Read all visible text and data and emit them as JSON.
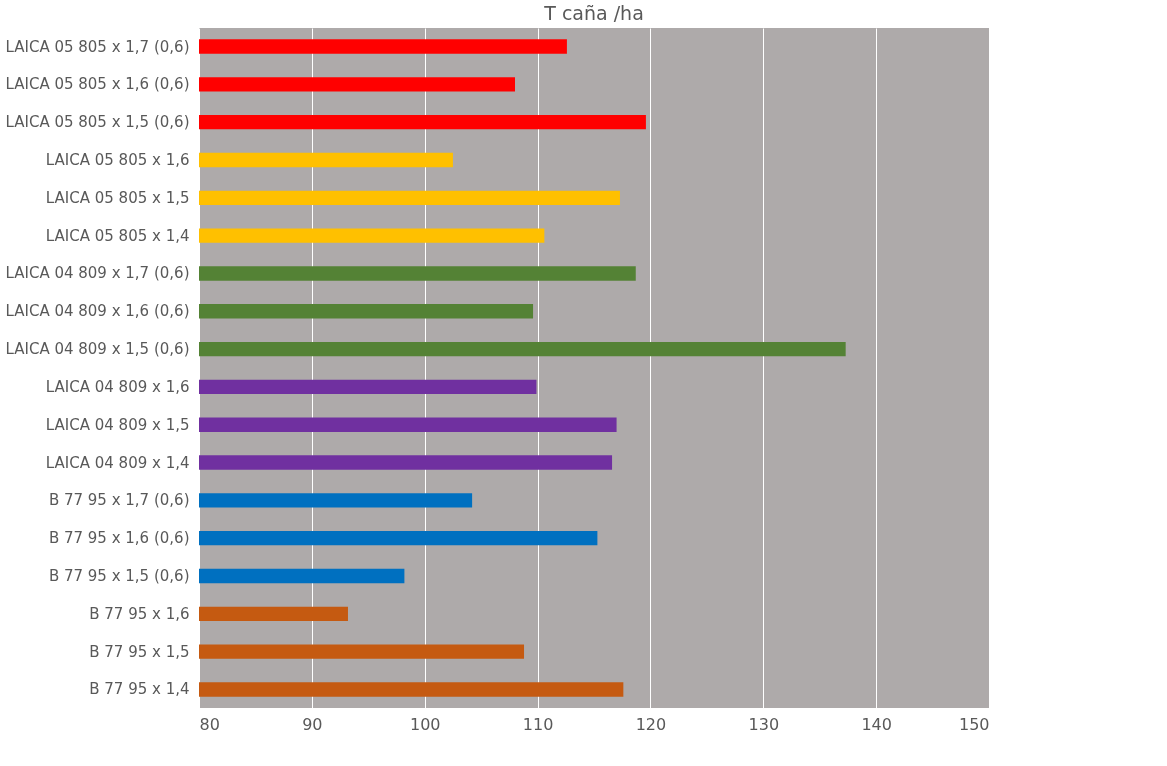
{
  "chart_data": {
    "type": "bar",
    "orientation": "horizontal",
    "title": "T caña /ha",
    "categories": [
      "LAICA 05 805 x 1,7 (0,6)",
      "LAICA 05 805 x 1,6 (0,6)",
      "LAICA 05 805 x 1,5 (0,6)",
      "LAICA 05 805 x 1,6",
      "LAICA 05 805 x 1,5",
      "LAICA 05 805 x 1,4",
      "LAICA 04 809 x 1,7 (0,6)",
      "LAICA 04 809 x 1,6 (0,6)",
      "LAICA 04 809 x 1,5 (0,6)",
      "LAICA 04 809 x 1,6",
      "LAICA 04 809 x 1,5",
      "LAICA 04 809 x 1,4",
      "B 77 95 x 1,7 (0,6)",
      "B 77 95 x 1,6 (0,6)",
      "B 77 95 x 1,5 (0,6)",
      "B 77 95 x 1,6",
      "B 77 95 x 1,5",
      "B 77 95 x 1,4"
    ],
    "values": [
      112.6,
      108.0,
      119.6,
      102.5,
      117.3,
      110.6,
      118.7,
      109.6,
      137.3,
      109.9,
      117.0,
      116.6,
      104.2,
      115.3,
      98.2,
      93.2,
      108.8,
      117.6
    ],
    "colors": [
      "#ff0000",
      "#ff0000",
      "#ff0000",
      "#ffc000",
      "#ffc000",
      "#ffc000",
      "#548235",
      "#548235",
      "#548235",
      "#7030a0",
      "#7030a0",
      "#7030a0",
      "#0070c0",
      "#0070c0",
      "#0070c0",
      "#c55a11",
      "#c55a11",
      "#c55a11"
    ],
    "xlim": [
      80,
      150
    ],
    "xticks": [
      80,
      90,
      100,
      110,
      120,
      130,
      140,
      150
    ],
    "grid": "x"
  }
}
